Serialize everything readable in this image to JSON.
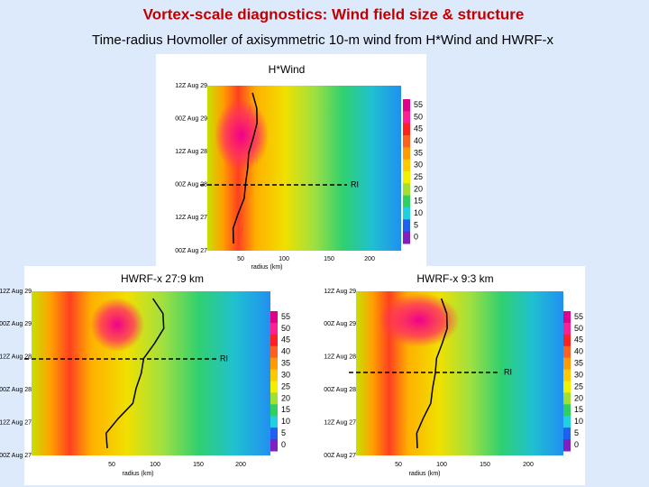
{
  "header": {
    "title": "Vortex-scale diagnostics: Wind field size & structure",
    "subtitle": "Time-radius Hovmoller of axisymmetric 10-m wind from H*Wind and HWRF-x"
  },
  "panels": [
    {
      "title": "H*Wind",
      "time_labels": [
        "12Z Aug 29",
        "00Z Aug 29",
        "12Z Aug 28",
        "00Z Aug 28",
        "12Z Aug 27",
        "00Z Aug 27"
      ],
      "radius_labels": [
        "50",
        "100",
        "150",
        "200"
      ],
      "radius_axis_label": "radius (km)",
      "colorbar_labels": [
        "55",
        "50",
        "45",
        "40",
        "35",
        "30",
        "25",
        "20",
        "15",
        "10",
        "5",
        "0"
      ],
      "annotation": "RI"
    },
    {
      "title": "HWRF-x 27:9 km",
      "time_labels": [
        "12Z Aug 29",
        "00Z Aug 29",
        "12Z Aug 28",
        "00Z Aug 28",
        "12Z Aug 27",
        "00Z Aug 27"
      ],
      "radius_labels": [
        "50",
        "100",
        "150",
        "200"
      ],
      "radius_axis_label": "radius (km)",
      "colorbar_labels": [
        "55",
        "50",
        "45",
        "40",
        "35",
        "30",
        "25",
        "20",
        "15",
        "10",
        "5",
        "0"
      ],
      "annotation": "RI"
    },
    {
      "title": "HWRF-x 9:3 km",
      "time_labels": [
        "12Z Aug 29",
        "00Z Aug 29",
        "12Z Aug 28",
        "00Z Aug 28",
        "12Z Aug 27",
        "00Z Aug 27"
      ],
      "radius_labels": [
        "50",
        "100",
        "150",
        "200"
      ],
      "radius_axis_label": "radius (km)",
      "colorbar_labels": [
        "55",
        "50",
        "45",
        "40",
        "35",
        "30",
        "25",
        "20",
        "15",
        "10",
        "5",
        "0"
      ],
      "annotation": "RI"
    }
  ]
}
